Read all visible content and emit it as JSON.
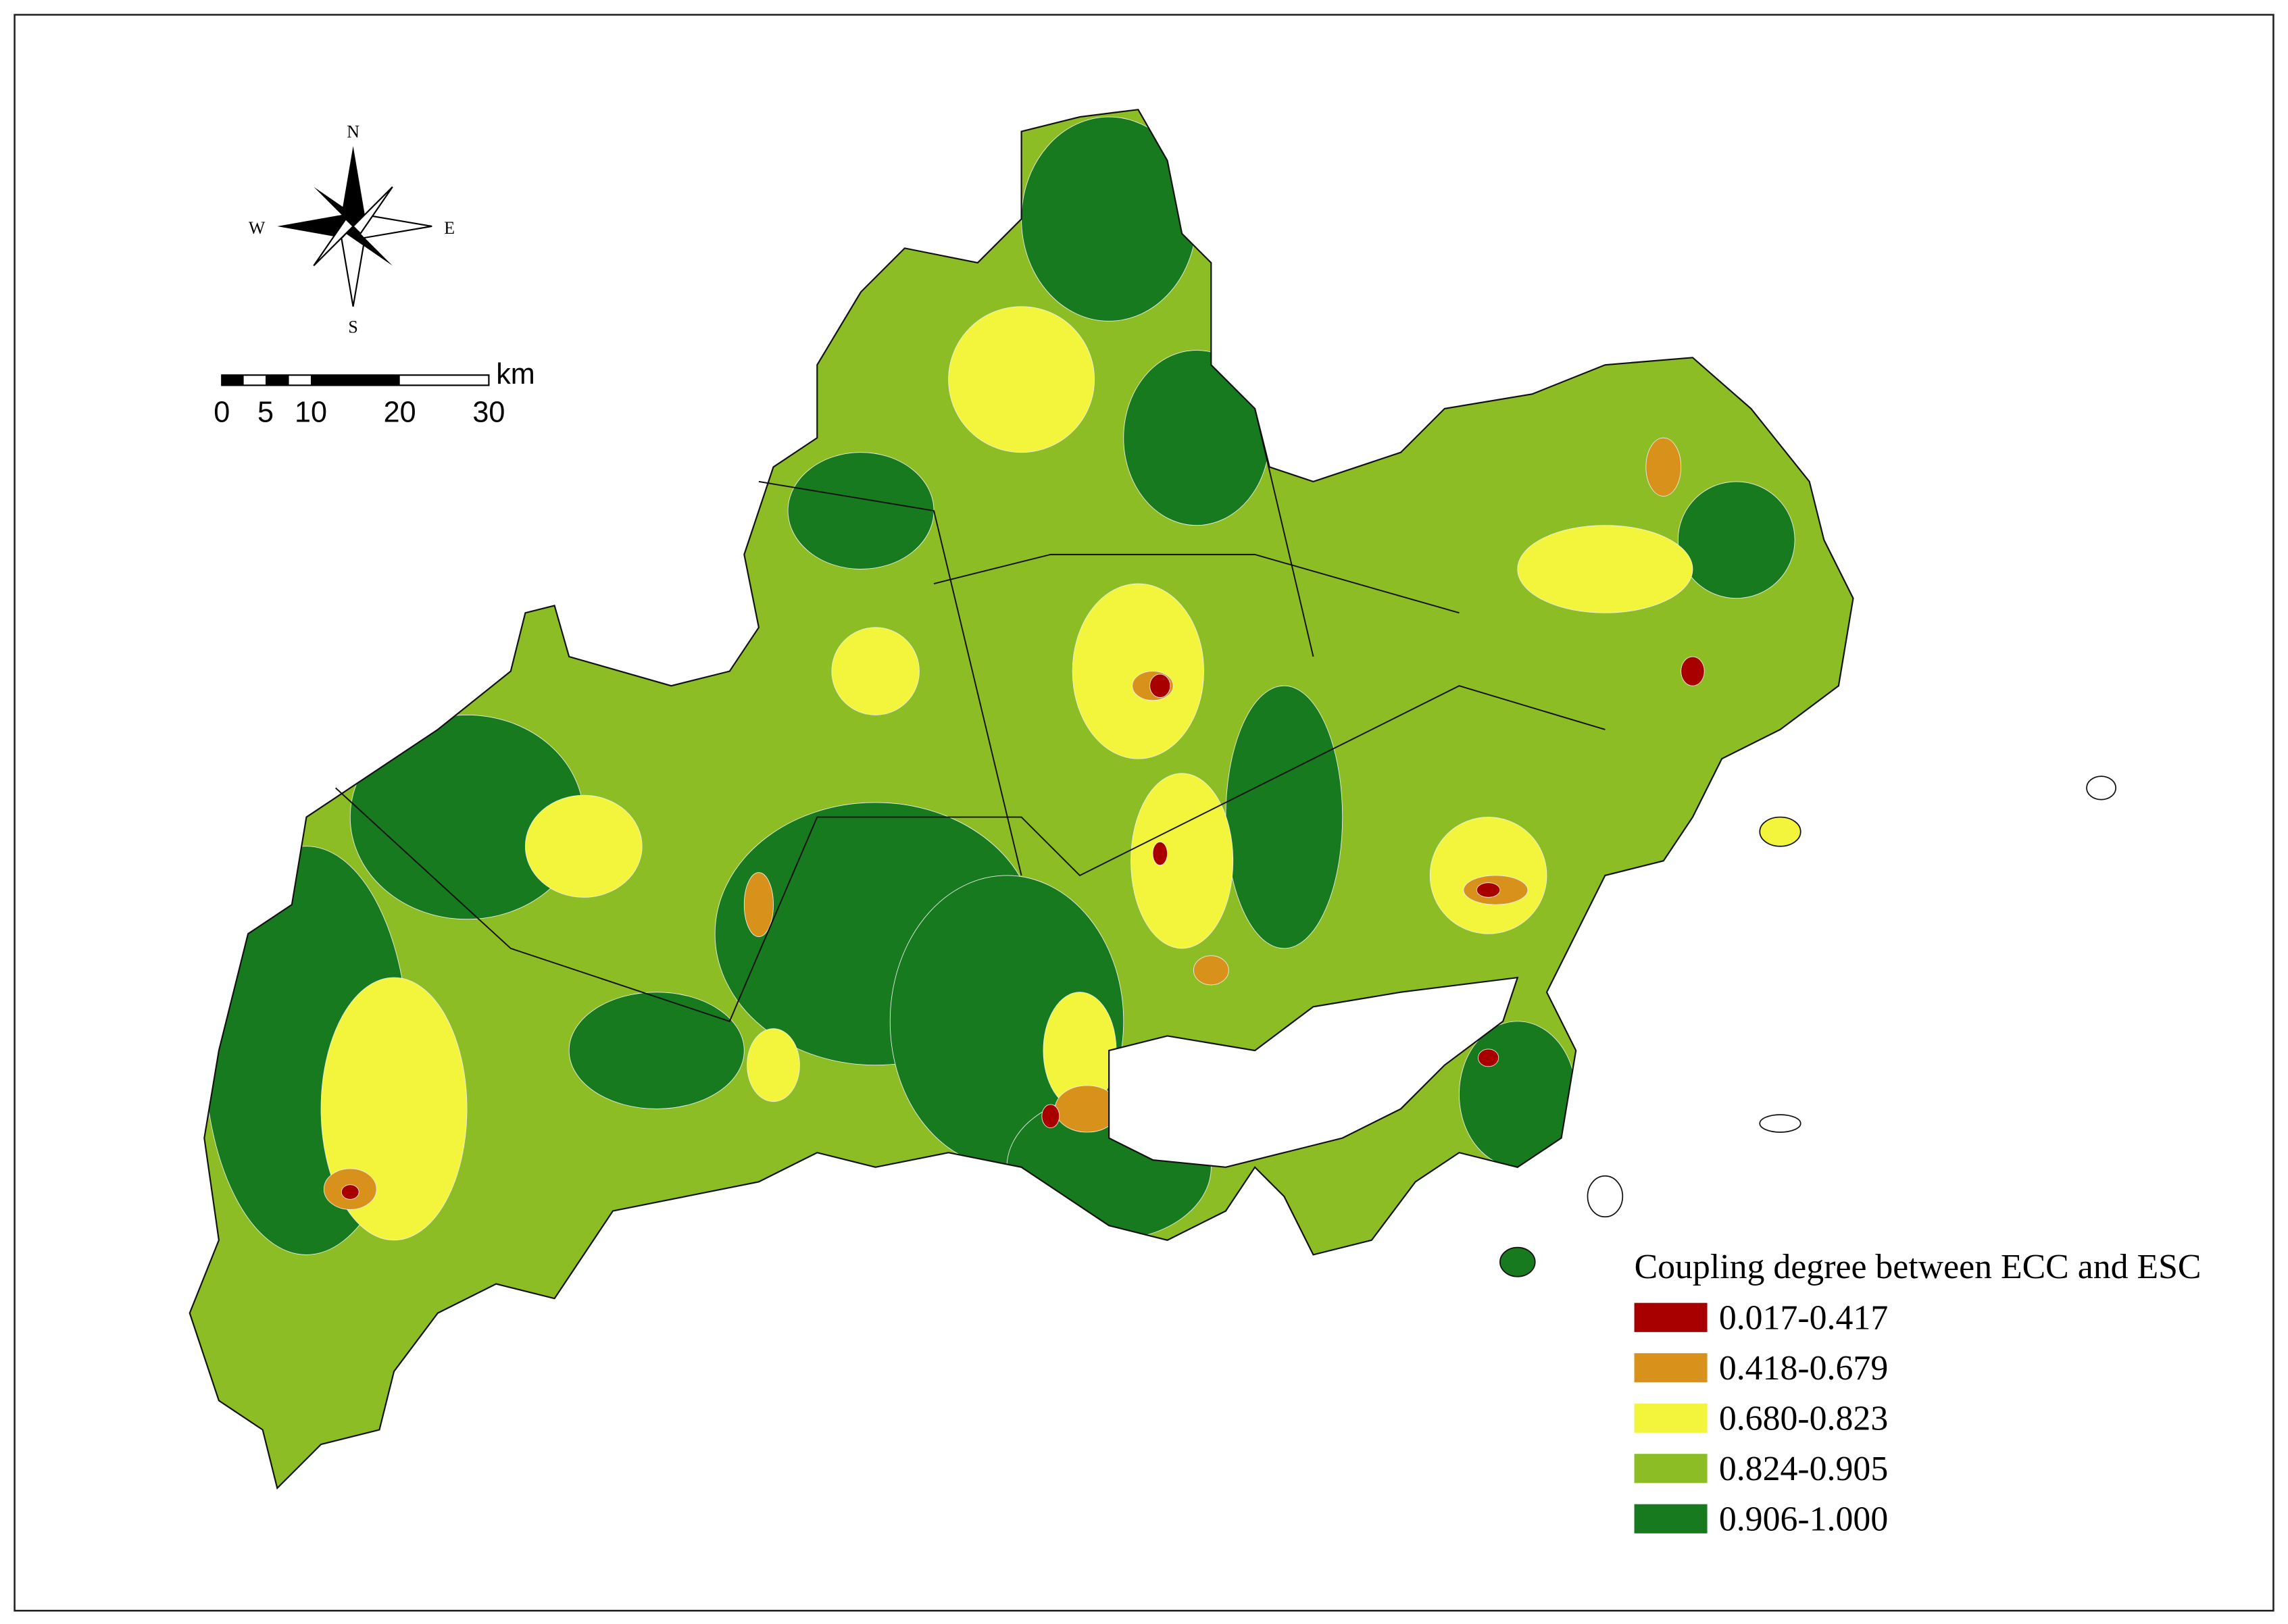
{
  "compass": {
    "north": "N",
    "south": "S",
    "west": "W",
    "east": "E"
  },
  "scale_bar": {
    "labels": [
      "0",
      "5",
      "10",
      "20",
      "30"
    ],
    "unit": "km"
  },
  "legend": {
    "title": "Coupling degree between ECC and ESC",
    "items": [
      {
        "label": "0.017-0.417",
        "color": "#a80000"
      },
      {
        "label": "0.418-0.679",
        "color": "#d8921c"
      },
      {
        "label": "0.680-0.823",
        "color": "#f3f53c"
      },
      {
        "label": "0.824-0.905",
        "color": "#8cbd24"
      },
      {
        "label": "0.906-1.000",
        "color": "#187a1f"
      }
    ]
  }
}
